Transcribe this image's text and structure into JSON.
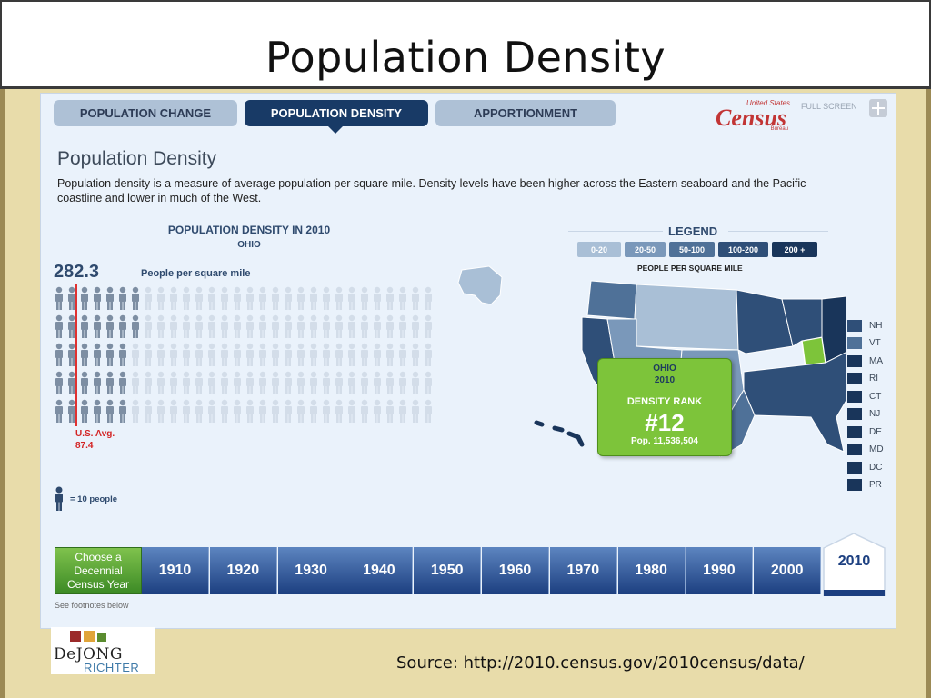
{
  "slide": {
    "title": "Population Density",
    "source": "Source:  http://2010.census.gov/2010census/data/"
  },
  "tabs": [
    {
      "label": "POPULATION CHANGE",
      "active": false
    },
    {
      "label": "POPULATION DENSITY",
      "active": true
    },
    {
      "label": "APPORTIONMENT",
      "active": false
    }
  ],
  "header": {
    "logo_small": "United States",
    "logo_big": "Census",
    "logo_bureau": "Bureau",
    "fullscreen_label": "FULL SCREEN"
  },
  "content": {
    "heading": "Population Density",
    "description": "Population density is a measure of average population per square mile. Density levels have been higher across the Eastern seaboard and the Pacific coastline and lower in much of the West."
  },
  "density_chart": {
    "title": "POPULATION DENSITY IN 2010",
    "state": "OHIO",
    "value": "282.3",
    "unit": "People per square mile",
    "us_avg_label": "U.S. Avg.",
    "us_avg_value": "87.4",
    "icon_legend": "= 10 people",
    "icons_total": 150,
    "icons_filled": 28
  },
  "legend": {
    "title": "LEGEND",
    "caption": "PEOPLE PER SQUARE MILE",
    "ranges": [
      {
        "label": "0-20",
        "color": "#a9bfd6"
      },
      {
        "label": "20-50",
        "color": "#7a98ba"
      },
      {
        "label": "50-100",
        "color": "#4f7198"
      },
      {
        "label": "100-200",
        "color": "#2f4f78"
      },
      {
        "label": "200 +",
        "color": "#19355a"
      }
    ]
  },
  "small_states": [
    {
      "label": "NH",
      "color": "#2f4f78"
    },
    {
      "label": "VT",
      "color": "#4f7198"
    },
    {
      "label": "MA",
      "color": "#19355a"
    },
    {
      "label": "RI",
      "color": "#19355a"
    },
    {
      "label": "CT",
      "color": "#19355a"
    },
    {
      "label": "NJ",
      "color": "#19355a"
    },
    {
      "label": "DE",
      "color": "#19355a"
    },
    {
      "label": "MD",
      "color": "#19355a"
    },
    {
      "label": "DC",
      "color": "#19355a"
    },
    {
      "label": "PR",
      "color": "#19355a"
    }
  ],
  "tooltip": {
    "state": "OHIO",
    "year": "2010",
    "rank_label": "DENSITY RANK",
    "rank": "#12",
    "population": "Pop. 11,536,504"
  },
  "timeline": {
    "prompt": "Choose a Decennial Census Year",
    "years": [
      "1910",
      "1920",
      "1930",
      "1940",
      "1950",
      "1960",
      "1970",
      "1980",
      "1990",
      "2000"
    ],
    "selected": "2010",
    "footnote": "See footnotes below"
  },
  "brand": {
    "word1": "DeJONG",
    "word2": "RICHTER"
  },
  "colors": {
    "ohio_highlight": "#7dc43a",
    "us_avg_line": "#e03131",
    "tab_active": "#183a66"
  }
}
